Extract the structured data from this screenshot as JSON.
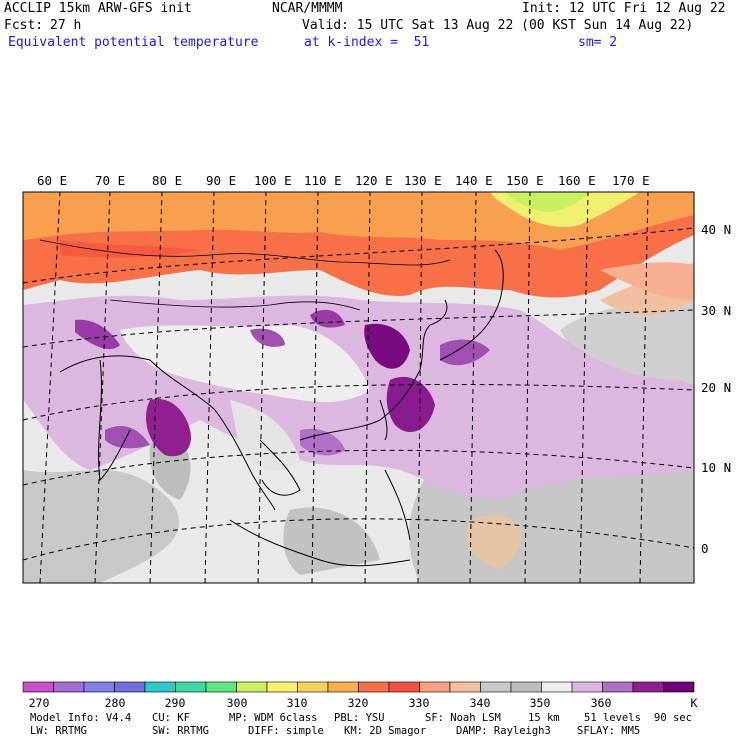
{
  "header": {
    "model_line": "ACCLIP 15km ARW-GFS init",
    "org": "NCAR/MMMM",
    "init": "Init: 12 UTC Fri 12 Aug 22",
    "fcst_label": "Fcst:",
    "fcst_value": "27 h",
    "valid": "Valid: 15 UTC Sat 13 Aug 22 (00 KST Sun 14 Aug 22)",
    "field": "Equivalent potential temperature",
    "kindex": "at k-index =  51",
    "smooth": "sm= 2"
  },
  "map": {
    "lon_labels": [
      "60 E",
      "70 E",
      "80 E",
      "90 E",
      "100 E",
      "110 E",
      "120 E",
      "130 E",
      "140 E",
      "150 E",
      "160 E",
      "170 E"
    ],
    "lat_labels": [
      "40 N",
      "30 N",
      "20 N",
      "10 N",
      "0"
    ]
  },
  "colorbar": {
    "colors": [
      "#c850c8",
      "#a070d0",
      "#8080e6",
      "#6f6fe0",
      "#30c8c8",
      "#40d8a0",
      "#60e880",
      "#c8f060",
      "#f8f070",
      "#f8d060",
      "#f8b050",
      "#f87048",
      "#f85040",
      "#f8a080",
      "#f0c0a0",
      "#c8c8c8",
      "#bebebe",
      "#eeeeee",
      "#dcb8e0",
      "#b070c8",
      "#902090",
      "#70007a"
    ],
    "labels": [
      "270",
      "280",
      "290",
      "300",
      "310",
      "320",
      "330",
      "340",
      "350",
      "360",
      "K"
    ]
  },
  "footer": {
    "model_info": "Model Info: V4.4",
    "cu": "CU: KF",
    "mp": "MP: WDM 6class",
    "pbl": "PBL: YSU",
    "sf": "SF: Noah LSM",
    "res": "15 km",
    "levels": "51 levels",
    "dt": "90 sec",
    "lw": "LW: RRTMG",
    "sw": "SW: RRTMG",
    "diff": "DIFF: simple",
    "km": "KM: 2D Smagor",
    "damp": "DAMP: Rayleigh3",
    "sflay": "SFLAY: MM5"
  }
}
